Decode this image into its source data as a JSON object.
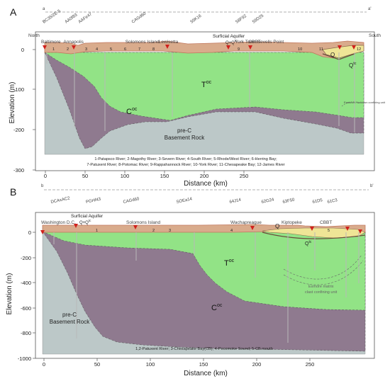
{
  "panelA": {
    "panel_label": "A",
    "endpoint_left": "a",
    "endpoint_right": "a'",
    "direction_left": "North",
    "direction_right": "South",
    "wells": [
      {
        "id": "BC35/2E-5",
        "km": -2
      },
      {
        "id": "AA0f83",
        "km": 26
      },
      {
        "id": "AAFe47",
        "km": 43
      },
      {
        "id": "CAGd60",
        "km": 110
      },
      {
        "id": "59K16",
        "km": 184
      },
      {
        "id": "58F92",
        "km": 241
      },
      {
        "id": "59D25",
        "km": 262
      }
    ],
    "places": [
      {
        "name": "Baltimore",
        "km": 0
      },
      {
        "name": "Annapolis",
        "km": 28
      },
      {
        "name": "Solomons Island",
        "km": 106
      },
      {
        "name": "Lewisetta",
        "km": 148
      },
      {
        "name": "York Town",
        "km": 244
      },
      {
        "name": "CBBT",
        "km": 261
      },
      {
        "name": "Sevells Point",
        "km": 272
      }
    ],
    "labels": {
      "aquifer": "Surficial Aquifer",
      "aquifer_sub": "Q+Q",
      "aquifer_sup": "tc",
      "q": "Q",
      "qtc": "Q",
      "qtc_sup": "tc",
      "toc": "T",
      "toc_sup": "oc",
      "coc": "C",
      "coc_sup": "oc",
      "basement_1": "pre-C",
      "basement_2": "Basement Rock",
      "confining": "Eastover-Yorktown confining unit"
    },
    "river_numbers": [
      "1",
      "2",
      "3",
      "4",
      "5",
      "6",
      "7",
      "8",
      "9",
      "10",
      "11",
      "12"
    ],
    "notes": [
      "1-Patapsco River; 2-Magothy River; 3-Severn River; 4-South River; 5-Rhode/West River; 6-Herring Bay;",
      "7-Patuxent River; 8-Potomac River; 9-Rappahannock River; 10-York River; 11-Chesapeake Bay; 12-James River"
    ],
    "axis": {
      "ylabel": "Elevation (m)",
      "xlabel": "Distance (km)",
      "yticks": [
        "0",
        "-100",
        "-200",
        "-300"
      ],
      "xticks": [
        "0",
        "50",
        "100",
        "150",
        "200",
        "250"
      ]
    }
  },
  "panelB": {
    "panel_label": "B",
    "endpoint_left": "b",
    "endpoint_right": "b'",
    "wells": [
      {
        "id": "DCAxAC2",
        "km": 12
      },
      {
        "id": "PGHf43",
        "km": 45
      },
      {
        "id": "CAGd60",
        "km": 80
      },
      {
        "id": "SOEa14",
        "km": 130
      },
      {
        "id": "64J14",
        "km": 180
      },
      {
        "id": "62G24",
        "km": 210
      },
      {
        "id": "63F50",
        "km": 230
      },
      {
        "id": "61D5",
        "km": 258
      },
      {
        "id": "61C3",
        "km": 272
      }
    ],
    "places": [
      {
        "name": "Washington D.C.",
        "km": 0
      },
      {
        "name": "Solomons Island",
        "km": 80
      },
      {
        "name": "Wachapreague",
        "km": 178
      },
      {
        "name": "Kiptopeke",
        "km": 226
      },
      {
        "name": "CBBT",
        "km": 262
      }
    ],
    "labels": {
      "aquifer": "Surficial Aquifer",
      "aquifer_sub": "Q+Q",
      "aquifer_sup": "tc",
      "q": "Q",
      "qtc": "Q",
      "qtc_sup": "tc",
      "toc": "T",
      "toc_sup": "oc",
      "coc": "C",
      "coc_sup": "oc",
      "basement_1": "pre-C",
      "basement_2": "Basement Rock",
      "confining_1": "Exmore matrix",
      "confining_2": "clast confining unit"
    },
    "river_numbers": [
      "1",
      "2",
      "3",
      "4",
      "5"
    ],
    "notes": [
      "1,2-Patuxent River; 3-Chesapeake Bay(CB); 4-Pocomoke Sound; 5-CB mouth"
    ],
    "axis": {
      "ylabel": "Elevation (m)",
      "xlabel": "Distance (km)",
      "yticks": [
        "0",
        "-200",
        "-400",
        "-600",
        "-800",
        "-1000"
      ],
      "xticks": [
        "0",
        "50",
        "100",
        "150",
        "200",
        "250"
      ]
    }
  },
  "colors": {
    "tertiary_green": "#92e386",
    "cretaceous_purple": "#8f7a8f",
    "basement_gray": "#bcc8c8",
    "water_blue": "#87c4ea",
    "surficial_tan": "#d9ab8c",
    "surficial_red": "#c1765c",
    "q_yellow": "#efe596",
    "well_red": "#d0201c",
    "well_line": "#b8b8b8"
  }
}
